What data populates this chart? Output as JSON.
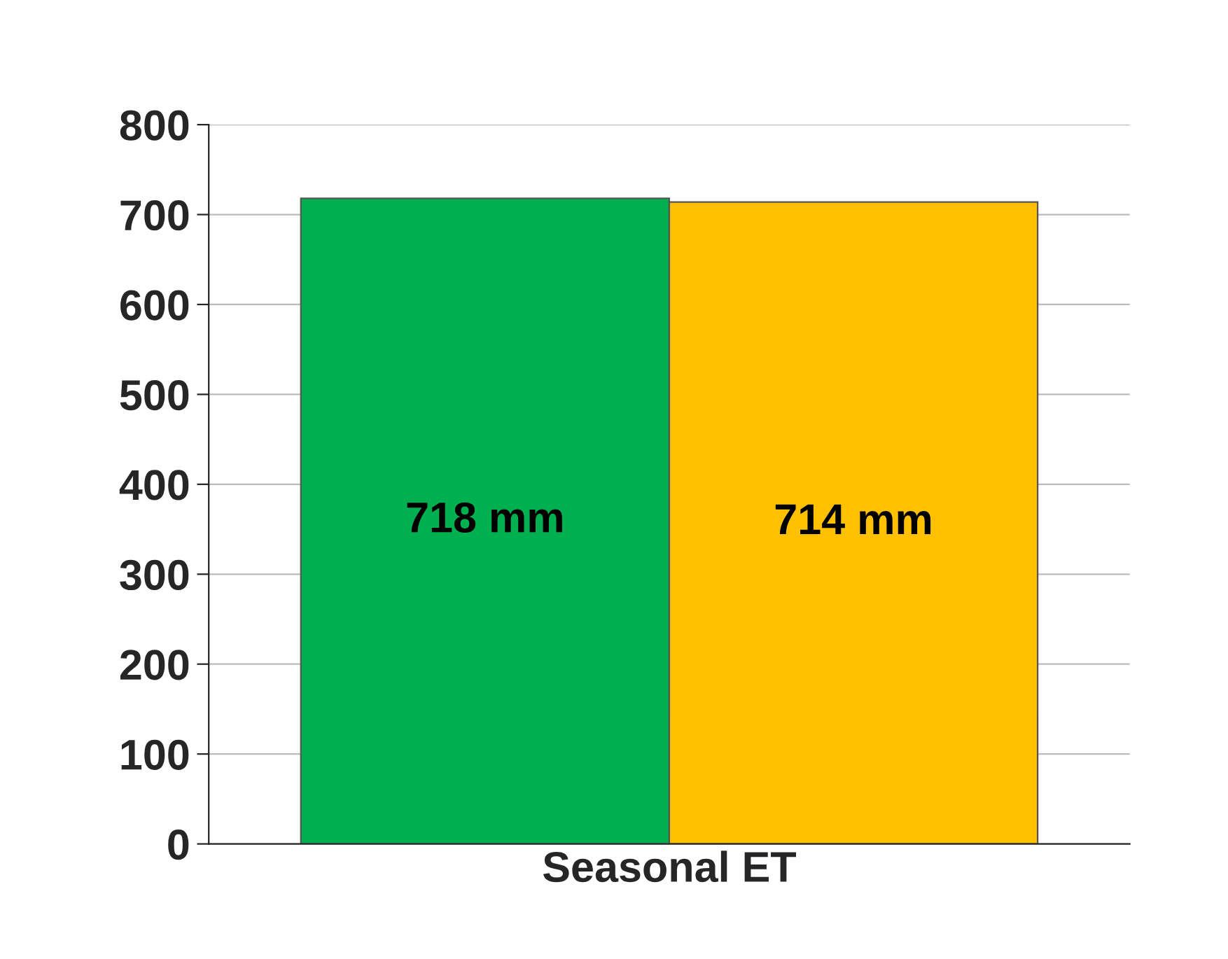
{
  "chart_data": {
    "type": "bar",
    "categories": [
      "Seasonal ET"
    ],
    "series": [
      {
        "color": "#00b050",
        "values": [
          718
        ],
        "value_labels": [
          "718 mm"
        ]
      },
      {
        "color": "#ffc000",
        "values": [
          714
        ],
        "value_labels": [
          "714 mm"
        ]
      }
    ],
    "ylim": [
      0,
      800
    ],
    "yticks": [
      0,
      100,
      200,
      300,
      400,
      500,
      600,
      700,
      800
    ],
    "grid": "y"
  }
}
